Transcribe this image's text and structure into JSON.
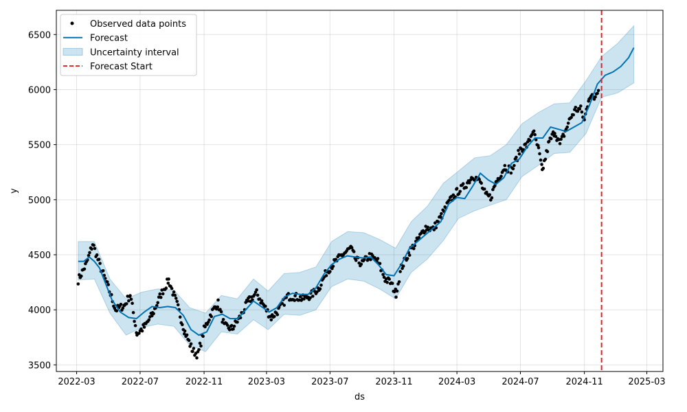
{
  "chart_data": {
    "type": "line",
    "title": "",
    "xlabel": "ds",
    "ylabel": "y",
    "xlim": [
      "2022-01-21",
      "2025-04-01"
    ],
    "ylim": [
      3440,
      6720
    ],
    "grid": true,
    "legend_position": "top-left",
    "x_ticks": [
      "2022-03",
      "2022-07",
      "2022-11",
      "2023-03",
      "2023-07",
      "2023-11",
      "2024-03",
      "2024-07",
      "2024-11",
      "2025-03"
    ],
    "y_ticks": [
      3500,
      4000,
      4500,
      5000,
      5500,
      6000,
      6500
    ],
    "legend": [
      {
        "label": "Observed data points",
        "style": "marker",
        "color": "#000000"
      },
      {
        "label": "Forecast",
        "style": "line",
        "color": "#0072B2"
      },
      {
        "label": "Uncertainty interval",
        "style": "band",
        "color": "#0072B2"
      },
      {
        "label": "Forecast Start",
        "style": "dashed",
        "color": "#d62728"
      }
    ],
    "forecast_start": "2024-12-04",
    "series": [
      {
        "name": "Forecast",
        "color": "#0072B2",
        "band_color": "#0072B2",
        "points": [
          [
            "2022-03-04",
            4440
          ],
          [
            "2022-03-15",
            4440
          ],
          [
            "2022-03-25",
            4480
          ],
          [
            "2022-04-04",
            4440
          ],
          [
            "2022-04-14",
            4380
          ],
          [
            "2022-04-24",
            4260
          ],
          [
            "2022-05-08",
            4090
          ],
          [
            "2022-05-24",
            3980
          ],
          [
            "2022-06-09",
            3930
          ],
          [
            "2022-06-24",
            3920
          ],
          [
            "2022-07-09",
            3980
          ],
          [
            "2022-07-24",
            4030
          ],
          [
            "2022-08-08",
            4020
          ],
          [
            "2022-08-23",
            4030
          ],
          [
            "2022-09-07",
            4020
          ],
          [
            "2022-09-22",
            3950
          ],
          [
            "2022-10-07",
            3820
          ],
          [
            "2022-10-22",
            3770
          ],
          [
            "2022-11-06",
            3800
          ],
          [
            "2022-11-21",
            3940
          ],
          [
            "2022-12-06",
            3960
          ],
          [
            "2022-12-21",
            3920
          ],
          [
            "2023-01-05",
            3920
          ],
          [
            "2023-01-20",
            4000
          ],
          [
            "2023-02-04",
            4080
          ],
          [
            "2023-02-19",
            4030
          ],
          [
            "2023-03-06",
            3980
          ],
          [
            "2023-03-21",
            4020
          ],
          [
            "2023-04-05",
            4120
          ],
          [
            "2023-04-20",
            4150
          ],
          [
            "2023-05-05",
            4140
          ],
          [
            "2023-05-20",
            4140
          ],
          [
            "2023-06-04",
            4200
          ],
          [
            "2023-06-19",
            4320
          ],
          [
            "2023-07-04",
            4410
          ],
          [
            "2023-07-19",
            4460
          ],
          [
            "2023-08-03",
            4490
          ],
          [
            "2023-08-18",
            4480
          ],
          [
            "2023-09-02",
            4470
          ],
          [
            "2023-09-17",
            4480
          ],
          [
            "2023-10-02",
            4410
          ],
          [
            "2023-10-17",
            4320
          ],
          [
            "2023-11-01",
            4310
          ],
          [
            "2023-11-16",
            4420
          ],
          [
            "2023-12-01",
            4560
          ],
          [
            "2023-12-16",
            4620
          ],
          [
            "2023-12-31",
            4680
          ],
          [
            "2024-01-15",
            4740
          ],
          [
            "2024-01-30",
            4800
          ],
          [
            "2024-02-14",
            4960
          ],
          [
            "2024-03-01",
            5020
          ],
          [
            "2024-03-16",
            5010
          ],
          [
            "2024-03-31",
            5120
          ],
          [
            "2024-04-15",
            5240
          ],
          [
            "2024-04-30",
            5180
          ],
          [
            "2024-05-15",
            5140
          ],
          [
            "2024-05-30",
            5200
          ],
          [
            "2024-06-14",
            5330
          ],
          [
            "2024-06-29",
            5370
          ],
          [
            "2024-07-14",
            5480
          ],
          [
            "2024-07-29",
            5560
          ],
          [
            "2024-08-13",
            5560
          ],
          [
            "2024-08-28",
            5660
          ],
          [
            "2024-09-12",
            5640
          ],
          [
            "2024-09-27",
            5620
          ],
          [
            "2024-10-12",
            5660
          ],
          [
            "2024-10-27",
            5700
          ],
          [
            "2024-11-11",
            5860
          ],
          [
            "2024-11-26",
            6050
          ],
          [
            "2024-12-11",
            6130
          ],
          [
            "2024-12-26",
            6160
          ],
          [
            "2025-01-10",
            6210
          ],
          [
            "2025-01-25",
            6290
          ],
          [
            "2025-02-04",
            6380
          ]
        ],
        "band": [
          [
            "2022-03-04",
            4270,
            4620
          ],
          [
            "2022-04-04",
            4280,
            4620
          ],
          [
            "2022-05-04",
            3970,
            4280
          ],
          [
            "2022-06-04",
            3770,
            4100
          ],
          [
            "2022-07-04",
            3840,
            4160
          ],
          [
            "2022-08-04",
            3870,
            4190
          ],
          [
            "2022-09-04",
            3850,
            4180
          ],
          [
            "2022-10-04",
            3680,
            4020
          ],
          [
            "2022-11-04",
            3620,
            3970
          ],
          [
            "2022-12-04",
            3800,
            4130
          ],
          [
            "2023-01-04",
            3780,
            4100
          ],
          [
            "2023-02-04",
            3910,
            4280
          ],
          [
            "2023-03-04",
            3820,
            4170
          ],
          [
            "2023-04-04",
            3960,
            4330
          ],
          [
            "2023-05-04",
            3950,
            4340
          ],
          [
            "2023-06-04",
            4000,
            4390
          ],
          [
            "2023-07-04",
            4210,
            4620
          ],
          [
            "2023-08-04",
            4280,
            4710
          ],
          [
            "2023-09-04",
            4260,
            4700
          ],
          [
            "2023-10-04",
            4190,
            4640
          ],
          [
            "2023-11-04",
            4100,
            4560
          ],
          [
            "2023-12-04",
            4340,
            4800
          ],
          [
            "2024-01-04",
            4460,
            4940
          ],
          [
            "2024-02-04",
            4630,
            5150
          ],
          [
            "2024-03-04",
            4830,
            5260
          ],
          [
            "2024-04-04",
            4900,
            5380
          ],
          [
            "2024-05-04",
            4950,
            5400
          ],
          [
            "2024-06-04",
            5000,
            5500
          ],
          [
            "2024-07-04",
            5210,
            5690
          ],
          [
            "2024-08-04",
            5310,
            5790
          ],
          [
            "2024-09-04",
            5420,
            5870
          ],
          [
            "2024-10-04",
            5430,
            5880
          ],
          [
            "2024-11-04",
            5600,
            6080
          ],
          [
            "2024-12-04",
            5930,
            6300
          ],
          [
            "2025-01-04",
            5970,
            6420
          ],
          [
            "2025-02-04",
            6060,
            6580
          ]
        ]
      },
      {
        "name": "Observed data points",
        "color": "#000000",
        "anchors": [
          [
            "2022-03-04",
            4270
          ],
          [
            "2022-03-20",
            4420
          ],
          [
            "2022-04-01",
            4600
          ],
          [
            "2022-04-15",
            4400
          ],
          [
            "2022-05-01",
            4200
          ],
          [
            "2022-05-15",
            4000
          ],
          [
            "2022-06-01",
            4040
          ],
          [
            "2022-06-12",
            4140
          ],
          [
            "2022-06-25",
            3780
          ],
          [
            "2022-07-10",
            3850
          ],
          [
            "2022-07-25",
            3960
          ],
          [
            "2022-08-10",
            4140
          ],
          [
            "2022-08-25",
            4270
          ],
          [
            "2022-09-10",
            4050
          ],
          [
            "2022-09-25",
            3800
          ],
          [
            "2022-10-10",
            3630
          ],
          [
            "2022-10-20",
            3590
          ],
          [
            "2022-11-01",
            3820
          ],
          [
            "2022-11-15",
            3970
          ],
          [
            "2022-11-28",
            4060
          ],
          [
            "2022-12-10",
            3850
          ],
          [
            "2022-12-25",
            3830
          ],
          [
            "2023-01-10",
            3940
          ],
          [
            "2023-01-25",
            4080
          ],
          [
            "2023-02-10",
            4150
          ],
          [
            "2023-02-25",
            4030
          ],
          [
            "2023-03-10",
            3930
          ],
          [
            "2023-03-25",
            4000
          ],
          [
            "2023-04-10",
            4120
          ],
          [
            "2023-04-25",
            4120
          ],
          [
            "2023-05-10",
            4100
          ],
          [
            "2023-05-25",
            4130
          ],
          [
            "2023-06-10",
            4200
          ],
          [
            "2023-06-25",
            4350
          ],
          [
            "2023-07-10",
            4430
          ],
          [
            "2023-07-25",
            4500
          ],
          [
            "2023-08-10",
            4560
          ],
          [
            "2023-08-20",
            4450
          ],
          [
            "2023-09-01",
            4420
          ],
          [
            "2023-09-15",
            4490
          ],
          [
            "2023-10-01",
            4440
          ],
          [
            "2023-10-15",
            4280
          ],
          [
            "2023-10-25",
            4250
          ],
          [
            "2023-11-05",
            4150
          ],
          [
            "2023-11-15",
            4380
          ],
          [
            "2023-12-01",
            4530
          ],
          [
            "2023-12-15",
            4620
          ],
          [
            "2024-01-01",
            4750
          ],
          [
            "2024-01-15",
            4730
          ],
          [
            "2024-02-01",
            4860
          ],
          [
            "2024-02-15",
            4980
          ],
          [
            "2024-03-01",
            5070
          ],
          [
            "2024-03-15",
            5120
          ],
          [
            "2024-04-01",
            5220
          ],
          [
            "2024-04-15",
            5160
          ],
          [
            "2024-04-25",
            5040
          ],
          [
            "2024-05-05",
            5020
          ],
          [
            "2024-05-15",
            5160
          ],
          [
            "2024-06-01",
            5300
          ],
          [
            "2024-06-15",
            5270
          ],
          [
            "2024-07-01",
            5460
          ],
          [
            "2024-07-15",
            5500
          ],
          [
            "2024-07-25",
            5630
          ],
          [
            "2024-08-05",
            5450
          ],
          [
            "2024-08-12",
            5260
          ],
          [
            "2024-08-25",
            5520
          ],
          [
            "2024-09-05",
            5620
          ],
          [
            "2024-09-15",
            5500
          ],
          [
            "2024-09-25",
            5620
          ],
          [
            "2024-10-05",
            5740
          ],
          [
            "2024-10-15",
            5820
          ],
          [
            "2024-10-25",
            5820
          ],
          [
            "2024-11-01",
            5720
          ],
          [
            "2024-11-10",
            5940
          ],
          [
            "2024-11-20",
            5920
          ],
          [
            "2024-11-30",
            6040
          ]
        ]
      }
    ]
  }
}
